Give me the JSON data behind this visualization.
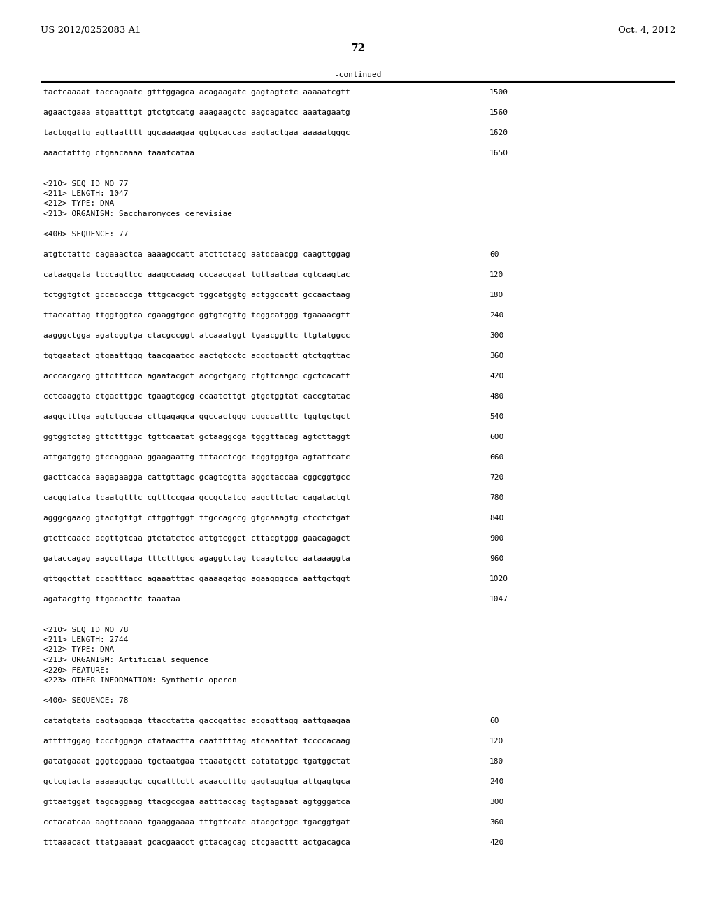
{
  "header_left": "US 2012/0252083 A1",
  "header_right": "Oct. 4, 2012",
  "page_number": "72",
  "continued_label": "-continued",
  "background_color": "#ffffff",
  "text_color": "#000000",
  "font_size_header": 9.5,
  "font_size_body": 8.0,
  "font_size_page": 11.0,
  "lines": [
    {
      "text": "tactcaaaat taccagaatc gtttggagca acagaagatc gagtagtctc aaaaatcgtt",
      "num": "1500",
      "blank_after": true
    },
    {
      "text": "agaactgaaa atgaatttgt gtctgtcatg aaagaagctc aagcagatcc aaatagaatg",
      "num": "1560",
      "blank_after": true
    },
    {
      "text": "tactggattg agttaatttt ggcaaaagaa ggtgcaccaa aagtactgaa aaaaatgggc",
      "num": "1620",
      "blank_after": true
    },
    {
      "text": "aaactatttg ctgaacaaaa taaatcataa",
      "num": "1650",
      "blank_after": true
    },
    {
      "text": "",
      "blank_after": false
    },
    {
      "text": "<210> SEQ ID NO 77",
      "num": "",
      "blank_after": false
    },
    {
      "text": "<211> LENGTH: 1047",
      "num": "",
      "blank_after": false
    },
    {
      "text": "<212> TYPE: DNA",
      "num": "",
      "blank_after": false
    },
    {
      "text": "<213> ORGANISM: Saccharomyces cerevisiae",
      "num": "",
      "blank_after": true
    },
    {
      "text": "<400> SEQUENCE: 77",
      "num": "",
      "blank_after": true
    },
    {
      "text": "atgtctattc cagaaactca aaaagccatt atcttctacg aatccaacgg caagttggag",
      "num": "60",
      "blank_after": true
    },
    {
      "text": "cataaggata tcccagttcc aaagccaaag cccaacgaat tgttaatcaa cgtcaagtac",
      "num": "120",
      "blank_after": true
    },
    {
      "text": "tctggtgtct gccacaccga tttgcacgct tggcatggtg actggccatt gccaactaag",
      "num": "180",
      "blank_after": true
    },
    {
      "text": "ttaccattag ttggtggtca cgaaggtgcc ggtgtcgttg tcggcatggg tgaaaacgtt",
      "num": "240",
      "blank_after": true
    },
    {
      "text": "aagggctgga agatcggtga ctacgccggt atcaaatggt tgaacggttc ttgtatggcc",
      "num": "300",
      "blank_after": true
    },
    {
      "text": "tgtgaatact gtgaattggg taacgaatcc aactgtcctc acgctgactt gtctggttac",
      "num": "360",
      "blank_after": true
    },
    {
      "text": "acccacgacg gttctttcca agaatacgct accgctgacg ctgttcaagc cgctcacatt",
      "num": "420",
      "blank_after": true
    },
    {
      "text": "cctcaaggta ctgacttggc tgaagtcgcg ccaatcttgt gtgctggtat caccgtatac",
      "num": "480",
      "blank_after": true
    },
    {
      "text": "aaggctttga agtctgccaa cttgagagca ggccactggg cggccatttc tggtgctgct",
      "num": "540",
      "blank_after": true
    },
    {
      "text": "ggtggtctag gttctttggc tgttcaatat gctaaggcga tgggttacag agtcttaggt",
      "num": "600",
      "blank_after": true
    },
    {
      "text": "attgatggtg gtccaggaaa ggaagaattg tttacctcgc tcggtggtga agtattcatc",
      "num": "660",
      "blank_after": true
    },
    {
      "text": "gacttcacca aagagaagga cattgttagc gcagtcgtta aggctaccaa cggcggtgcc",
      "num": "720",
      "blank_after": true
    },
    {
      "text": "cacggtatca tcaatgtttc cgtttccgaa gccgctatcg aagcttctac cagatactgt",
      "num": "780",
      "blank_after": true
    },
    {
      "text": "agggcgaacg gtactgttgt cttggttggt ttgccagccg gtgcaaagtg ctcctctgat",
      "num": "840",
      "blank_after": true
    },
    {
      "text": "gtcttcaacc acgttgtcaa gtctatctcc attgtcggct cttacgtggg gaacagagct",
      "num": "900",
      "blank_after": true
    },
    {
      "text": "gataccagag aagccttaga tttctttgcc agaggtctag tcaagtctcc aataaaggta",
      "num": "960",
      "blank_after": true
    },
    {
      "text": "gttggcttat ccagtttacc agaaatttac gaaaagatgg agaagggcca aattgctggt",
      "num": "1020",
      "blank_after": true
    },
    {
      "text": "agatacgttg ttgacacttc taaataa",
      "num": "1047",
      "blank_after": true
    },
    {
      "text": "",
      "blank_after": false
    },
    {
      "text": "<210> SEQ ID NO 78",
      "num": "",
      "blank_after": false
    },
    {
      "text": "<211> LENGTH: 2744",
      "num": "",
      "blank_after": false
    },
    {
      "text": "<212> TYPE: DNA",
      "num": "",
      "blank_after": false
    },
    {
      "text": "<213> ORGANISM: Artificial sequence",
      "num": "",
      "blank_after": false
    },
    {
      "text": "<220> FEATURE:",
      "num": "",
      "blank_after": false
    },
    {
      "text": "<223> OTHER INFORMATION: Synthetic operon",
      "num": "",
      "blank_after": true
    },
    {
      "text": "<400> SEQUENCE: 78",
      "num": "",
      "blank_after": true
    },
    {
      "text": "catatgtata cagtaggaga ttacctatta gaccgattac acgagttagg aattgaagaa",
      "num": "60",
      "blank_after": true
    },
    {
      "text": "atttttggag tccctggaga ctataactta caatttttag atcaaattat tccccacaag",
      "num": "120",
      "blank_after": true
    },
    {
      "text": "gatatgaaat gggtcggaaa tgctaatgaa ttaaatgctt catatatggc tgatggctat",
      "num": "180",
      "blank_after": true
    },
    {
      "text": "gctcgtacta aaaaagctgc cgcatttctt acaacctttg gagtaggtga attgagtgca",
      "num": "240",
      "blank_after": true
    },
    {
      "text": "gttaatggat tagcaggaag ttacgccgaa aatttaccag tagtagaaat agtgggatca",
      "num": "300",
      "blank_after": true
    },
    {
      "text": "cctacatcaa aagttcaaaa tgaaggaaaa tttgttcatc atacgctggc tgacggtgat",
      "num": "360",
      "blank_after": true
    },
    {
      "text": "tttaaacact ttatgaaaat gcacgaacct gttacagcag ctcgaacttt actgacagca",
      "num": "420",
      "blank_after": true
    }
  ]
}
